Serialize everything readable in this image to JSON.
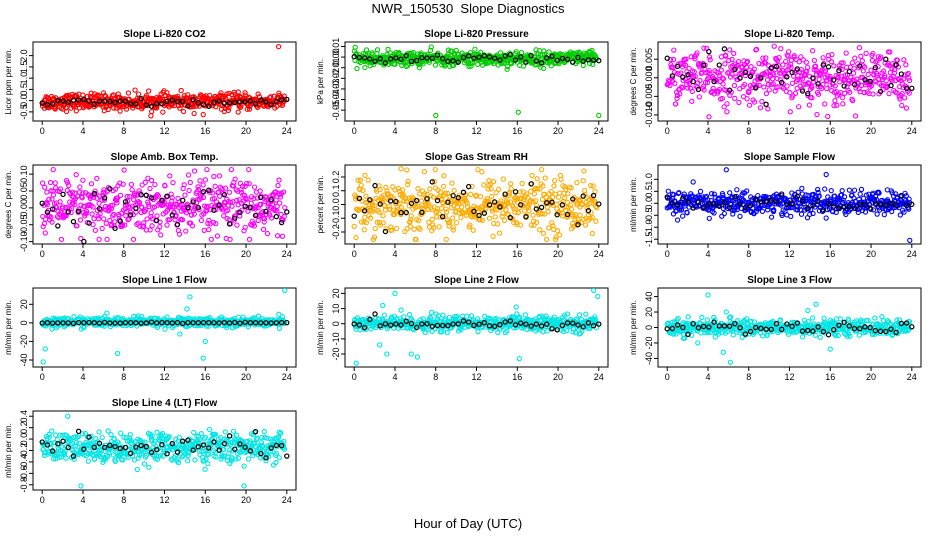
{
  "title": "NWR_150530  Slope Diagnostics",
  "xaxis_title": "Hour of Day (UTC)",
  "chart_data": [
    {
      "type": "scatter",
      "title": "Slope Li-820 CO2",
      "ylabel": "Licor ppm per min.",
      "xlim": [
        0,
        24
      ],
      "ylim": [
        -0.8,
        2.5
      ],
      "yticks": [
        -0.5,
        0.0,
        0.5,
        1.0,
        1.5,
        2.0
      ],
      "ytick_labels": [
        "-0.5",
        "0.0",
        "0.5",
        "1.0",
        "1.5",
        "2.0"
      ],
      "xticks": [
        0,
        4,
        8,
        12,
        16,
        20,
        24
      ],
      "color": "#ff0000",
      "center": -0.05,
      "spread": 0.18,
      "outliers": [
        [
          23.2,
          2.4
        ],
        [
          15.8,
          -0.62
        ]
      ],
      "hourly_center": -0.1,
      "hourly_spread": 0.1
    },
    {
      "type": "scatter",
      "title": "Slope Li-820 Pressure",
      "ylabel": "kPa per min.",
      "xlim": [
        0,
        24
      ],
      "ylim": [
        -0.058,
        0.012
      ],
      "yticks": [
        -0.05,
        -0.04,
        -0.03,
        -0.02,
        -0.01,
        0.0,
        0.01
      ],
      "ytick_labels": [
        "-0.05",
        "-0.04",
        "-0.03",
        "-0.02",
        "-0.01",
        "0.00",
        "0.01"
      ],
      "xticks": [
        0,
        4,
        8,
        12,
        16,
        20,
        24
      ],
      "color": "#00cc00",
      "center": -0.0015,
      "spread": 0.0035,
      "outliers": [
        [
          8.0,
          -0.055
        ],
        [
          16.1,
          -0.052
        ],
        [
          24.0,
          -0.055
        ]
      ],
      "hourly_center": -0.0015,
      "hourly_spread": 0.002
    },
    {
      "type": "scatter",
      "title": "Slope Li-820 Temp.",
      "ylabel": "degrees C per min.",
      "xlim": [
        0,
        24
      ],
      "ylim": [
        -0.011,
        0.009
      ],
      "yticks": [
        -0.01,
        -0.005,
        0.0,
        0.005
      ],
      "ytick_labels": [
        "-0.010",
        "-0.005",
        "0.000",
        "0.005"
      ],
      "xticks": [
        0,
        4,
        8,
        12,
        16,
        20,
        24
      ],
      "color": "#ff00ff",
      "center": 0.0,
      "spread": 0.0035,
      "outliers": [
        [
          4.1,
          -0.0105
        ],
        [
          10.5,
          0.0085
        ]
      ],
      "hourly_center": 0.0,
      "hourly_spread": 0.003
    },
    {
      "type": "scatter",
      "title": "Slope Amb. Box Temp.",
      "ylabel": "degrees C per min.",
      "xlim": [
        0,
        24
      ],
      "ylim": [
        -0.1,
        0.12
      ],
      "yticks": [
        -0.1,
        -0.05,
        0.0,
        0.05,
        0.1
      ],
      "ytick_labels": [
        "-0.10",
        "-0.05",
        "0.00",
        "0.05",
        "0.10"
      ],
      "xticks": [
        0,
        4,
        8,
        12,
        16,
        20,
        24
      ],
      "color": "#ff00ff",
      "center": 0.0,
      "spread": 0.045,
      "outliers": [],
      "hourly_center": 0.0,
      "hourly_spread": 0.03
    },
    {
      "type": "scatter",
      "title": "Slope Gas Stream RH",
      "ylabel": "percent per min.",
      "xlim": [
        0,
        24
      ],
      "ylim": [
        -0.27,
        0.27
      ],
      "yticks": [
        -0.2,
        -0.1,
        0.0,
        0.1,
        0.2
      ],
      "ytick_labels": [
        "-0.2",
        "-0.1",
        "0.0",
        "0.1",
        "0.2"
      ],
      "xticks": [
        0,
        4,
        8,
        12,
        16,
        20,
        24
      ],
      "color": "#ffaa00",
      "center": 0.0,
      "spread": 0.1,
      "outliers": [
        [
          4.6,
          0.26
        ]
      ],
      "hourly_center": 0.0,
      "hourly_spread": 0.08
    },
    {
      "type": "scatter",
      "title": "Slope Sample Flow",
      "ylabel": "ml/min per min.",
      "xlim": [
        0,
        24
      ],
      "ylim": [
        -1.6,
        1.5
      ],
      "yticks": [
        -1.5,
        -1.0,
        -0.5,
        0.0,
        0.5,
        1.0
      ],
      "ytick_labels": [
        "-1.5",
        "-1.0",
        "-0.5",
        "0.0",
        "0.5",
        "1.0"
      ],
      "xticks": [
        0,
        4,
        8,
        12,
        16,
        20,
        24
      ],
      "color": "#0000ff",
      "center": 0.0,
      "spread": 0.25,
      "outliers": [
        [
          5.8,
          1.4
        ],
        [
          23.8,
          -1.55
        ],
        [
          15.6,
          1.2
        ]
      ],
      "hourly_center": 0.0,
      "hourly_spread": 0.15
    },
    {
      "type": "scatter",
      "title": "Slope Line 1 Flow",
      "ylabel": "ml/min per min.",
      "xlim": [
        0,
        24
      ],
      "ylim": [
        -45,
        35
      ],
      "yticks": [
        -40,
        -20,
        0,
        20
      ],
      "ytick_labels": [
        "-40",
        "-20",
        "0",
        "20"
      ],
      "xticks": [
        0,
        4,
        8,
        12,
        16,
        20,
        24
      ],
      "color": "#00e5e5",
      "center": 1.0,
      "spread": 2.5,
      "outliers": [
        [
          0.1,
          -42
        ],
        [
          0.3,
          -28
        ],
        [
          7.4,
          -33
        ],
        [
          14.5,
          28
        ],
        [
          15.8,
          -38
        ],
        [
          16.0,
          -20
        ],
        [
          23.8,
          35
        ],
        [
          14.2,
          15
        ],
        [
          13.5,
          -12
        ],
        [
          12.8,
          -5
        ]
      ],
      "hourly_center": 0.0,
      "hourly_spread": 0.3
    },
    {
      "type": "scatter",
      "title": "Slope Line 2 Flow",
      "ylabel": "ml/min per min.",
      "xlim": [
        0,
        24
      ],
      "ylim": [
        -27,
        22
      ],
      "yticks": [
        -20,
        -10,
        0,
        10,
        20
      ],
      "ytick_labels": [
        "-20",
        "-10",
        "0",
        "10",
        "20"
      ],
      "xticks": [
        0,
        4,
        8,
        12,
        16,
        20,
        24
      ],
      "color": "#00e5e5",
      "center": 0.0,
      "spread": 2.5,
      "outliers": [
        [
          0.2,
          -26
        ],
        [
          2.5,
          -14
        ],
        [
          3.2,
          -20
        ],
        [
          4.0,
          20
        ],
        [
          5.6,
          -20
        ],
        [
          6.2,
          -22
        ],
        [
          16.2,
          -23
        ],
        [
          15.9,
          11
        ],
        [
          23.5,
          22
        ],
        [
          23.9,
          18
        ],
        [
          2.8,
          12
        ],
        [
          4.6,
          9
        ]
      ],
      "hourly_center": 0.0,
      "hourly_spread": 1.5
    },
    {
      "type": "scatter",
      "title": "Slope Line 3 Flow",
      "ylabel": "ml/min per min.",
      "xlim": [
        0,
        24
      ],
      "ylim": [
        -48,
        48
      ],
      "yticks": [
        -40,
        -20,
        0,
        20,
        40
      ],
      "ytick_labels": [
        "-40",
        "-20",
        "0",
        "20",
        "40"
      ],
      "xticks": [
        0,
        4,
        8,
        12,
        16,
        20,
        24
      ],
      "color": "#00e5e5",
      "center": 0.0,
      "spread": 5.0,
      "outliers": [
        [
          4.0,
          42
        ],
        [
          5.5,
          -32
        ],
        [
          6.2,
          -45
        ],
        [
          3.0,
          -20
        ],
        [
          1.6,
          -14
        ],
        [
          14.6,
          30
        ],
        [
          16.0,
          -28
        ],
        [
          13.8,
          22
        ],
        [
          15.4,
          12
        ],
        [
          5.8,
          20
        ],
        [
          22.8,
          10
        ]
      ],
      "hourly_center": 0.0,
      "hourly_spread": 4.0
    },
    {
      "type": "scatter",
      "title": "Slope Line 4 (LT) Flow",
      "ylabel": "ml/min per min.",
      "xlim": [
        0,
        24
      ],
      "ylim": [
        -0.85,
        0.45
      ],
      "yticks": [
        -0.8,
        -0.6,
        -0.4,
        -0.2,
        0.0,
        0.2,
        0.4
      ],
      "ytick_labels": [
        "-0.8",
        "-0.6",
        "-0.4",
        "-0.2",
        "0.0",
        "0.2",
        "0.4"
      ],
      "xticks": [
        0,
        4,
        8,
        12,
        16,
        20,
        24
      ],
      "color": "#00e5e5",
      "center": -0.15,
      "spread": 0.13,
      "outliers": [
        [
          3.8,
          -0.82
        ],
        [
          19.8,
          -0.82
        ],
        [
          2.5,
          0.4
        ]
      ],
      "hourly_center": -0.15,
      "hourly_spread": 0.1
    }
  ]
}
